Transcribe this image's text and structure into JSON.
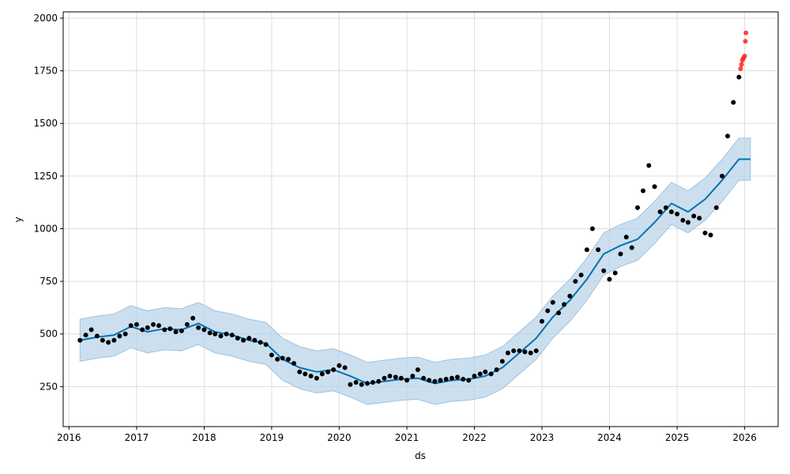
{
  "chart_data": {
    "type": "line",
    "title": "",
    "xlabel": "ds",
    "ylabel": "y",
    "x_ticks": [
      "2016",
      "2017",
      "2018",
      "2019",
      "2020",
      "2021",
      "2022",
      "2023",
      "2024",
      "2025",
      "2026"
    ],
    "y_ticks": [
      250,
      500,
      750,
      1000,
      1250,
      1500,
      1750,
      2000
    ],
    "xlim": [
      "2015-12-01",
      "2026-07-01"
    ],
    "ylim": [
      60,
      2030
    ],
    "grid": true,
    "colors": {
      "forecast": "#0072B2",
      "interval": "#b7d2e8",
      "observed": "#000000",
      "recent": "#ff2020"
    },
    "series": [
      {
        "name": "",
        "role": "observed",
        "points": [
          [
            "2016-03-01",
            470
          ],
          [
            "2016-04-01",
            495
          ],
          [
            "2016-05-01",
            520
          ],
          [
            "2016-06-01",
            490
          ],
          [
            "2016-07-01",
            470
          ],
          [
            "2016-08-01",
            460
          ],
          [
            "2016-09-01",
            470
          ],
          [
            "2016-10-01",
            490
          ],
          [
            "2016-11-01",
            500
          ],
          [
            "2016-12-01",
            540
          ],
          [
            "2017-01-01",
            545
          ],
          [
            "2017-02-01",
            520
          ],
          [
            "2017-03-01",
            530
          ],
          [
            "2017-04-01",
            545
          ],
          [
            "2017-05-01",
            540
          ],
          [
            "2017-06-01",
            520
          ],
          [
            "2017-07-01",
            525
          ],
          [
            "2017-08-01",
            510
          ],
          [
            "2017-09-01",
            515
          ],
          [
            "2017-10-01",
            545
          ],
          [
            "2017-11-01",
            575
          ],
          [
            "2017-12-01",
            530
          ],
          [
            "2018-01-01",
            520
          ],
          [
            "2018-02-01",
            505
          ],
          [
            "2018-03-01",
            500
          ],
          [
            "2018-04-01",
            490
          ],
          [
            "2018-05-01",
            500
          ],
          [
            "2018-06-01",
            495
          ],
          [
            "2018-07-01",
            480
          ],
          [
            "2018-08-01",
            470
          ],
          [
            "2018-09-01",
            480
          ],
          [
            "2018-10-01",
            470
          ],
          [
            "2018-11-01",
            460
          ],
          [
            "2018-12-01",
            450
          ],
          [
            "2019-01-01",
            400
          ],
          [
            "2019-02-01",
            380
          ],
          [
            "2019-03-01",
            385
          ],
          [
            "2019-04-01",
            380
          ],
          [
            "2019-05-01",
            360
          ],
          [
            "2019-06-01",
            320
          ],
          [
            "2019-07-01",
            310
          ],
          [
            "2019-08-01",
            300
          ],
          [
            "2019-09-01",
            290
          ],
          [
            "2019-10-01",
            310
          ],
          [
            "2019-11-01",
            320
          ],
          [
            "2019-12-01",
            330
          ],
          [
            "2020-01-01",
            350
          ],
          [
            "2020-02-01",
            340
          ],
          [
            "2020-03-01",
            260
          ],
          [
            "2020-04-01",
            270
          ],
          [
            "2020-05-01",
            260
          ],
          [
            "2020-06-01",
            265
          ],
          [
            "2020-07-01",
            270
          ],
          [
            "2020-08-01",
            275
          ],
          [
            "2020-09-01",
            290
          ],
          [
            "2020-10-01",
            300
          ],
          [
            "2020-11-01",
            295
          ],
          [
            "2020-12-01",
            290
          ],
          [
            "2021-01-01",
            280
          ],
          [
            "2021-02-01",
            300
          ],
          [
            "2021-03-01",
            330
          ],
          [
            "2021-04-01",
            290
          ],
          [
            "2021-05-01",
            280
          ],
          [
            "2021-06-01",
            275
          ],
          [
            "2021-07-01",
            280
          ],
          [
            "2021-08-01",
            285
          ],
          [
            "2021-09-01",
            290
          ],
          [
            "2021-10-01",
            295
          ],
          [
            "2021-11-01",
            285
          ],
          [
            "2021-12-01",
            280
          ],
          [
            "2022-01-01",
            300
          ],
          [
            "2022-02-01",
            310
          ],
          [
            "2022-03-01",
            320
          ],
          [
            "2022-04-01",
            310
          ],
          [
            "2022-05-01",
            330
          ],
          [
            "2022-06-01",
            370
          ],
          [
            "2022-07-01",
            410
          ],
          [
            "2022-08-01",
            420
          ],
          [
            "2022-09-01",
            420
          ],
          [
            "2022-10-01",
            415
          ],
          [
            "2022-11-01",
            410
          ],
          [
            "2022-12-01",
            420
          ],
          [
            "2023-01-01",
            560
          ],
          [
            "2023-02-01",
            610
          ],
          [
            "2023-03-01",
            650
          ],
          [
            "2023-04-01",
            600
          ],
          [
            "2023-05-01",
            640
          ],
          [
            "2023-06-01",
            680
          ],
          [
            "2023-07-01",
            750
          ],
          [
            "2023-08-01",
            780
          ],
          [
            "2023-09-01",
            900
          ],
          [
            "2023-10-01",
            1000
          ],
          [
            "2023-11-01",
            900
          ],
          [
            "2023-12-01",
            800
          ],
          [
            "2024-01-01",
            760
          ],
          [
            "2024-02-01",
            790
          ],
          [
            "2024-03-01",
            880
          ],
          [
            "2024-04-01",
            960
          ],
          [
            "2024-05-01",
            910
          ],
          [
            "2024-06-01",
            1100
          ],
          [
            "2024-07-01",
            1180
          ],
          [
            "2024-08-01",
            1300
          ],
          [
            "2024-09-01",
            1200
          ],
          [
            "2024-10-01",
            1080
          ],
          [
            "2024-11-01",
            1100
          ],
          [
            "2024-12-01",
            1080
          ],
          [
            "2025-01-01",
            1070
          ],
          [
            "2025-02-01",
            1040
          ],
          [
            "2025-03-01",
            1030
          ],
          [
            "2025-04-01",
            1060
          ],
          [
            "2025-05-01",
            1050
          ],
          [
            "2025-06-01",
            980
          ],
          [
            "2025-07-01",
            970
          ],
          [
            "2025-08-01",
            1100
          ],
          [
            "2025-09-01",
            1250
          ],
          [
            "2025-10-01",
            1440
          ],
          [
            "2025-11-01",
            1600
          ],
          [
            "2025-12-01",
            1720
          ]
        ]
      },
      {
        "name": "",
        "role": "recent",
        "points": [
          [
            "2025-12-10",
            1760
          ],
          [
            "2025-12-15",
            1780
          ],
          [
            "2025-12-20",
            1800
          ],
          [
            "2025-12-25",
            1810
          ],
          [
            "2026-01-01",
            1820
          ],
          [
            "2026-01-05",
            1890
          ],
          [
            "2026-01-08",
            1930
          ]
        ]
      },
      {
        "name": "",
        "role": "forecast",
        "points": [
          [
            "2016-03-01",
            470
          ],
          [
            "2016-06-01",
            485
          ],
          [
            "2016-09-01",
            495
          ],
          [
            "2016-12-01",
            535
          ],
          [
            "2017-03-01",
            510
          ],
          [
            "2017-06-01",
            525
          ],
          [
            "2017-09-01",
            520
          ],
          [
            "2017-12-01",
            550
          ],
          [
            "2018-03-01",
            510
          ],
          [
            "2018-06-01",
            495
          ],
          [
            "2018-09-01",
            470
          ],
          [
            "2018-12-01",
            455
          ],
          [
            "2019-03-01",
            380
          ],
          [
            "2019-06-01",
            340
          ],
          [
            "2019-09-01",
            320
          ],
          [
            "2019-12-01",
            330
          ],
          [
            "2020-03-01",
            300
          ],
          [
            "2020-06-01",
            265
          ],
          [
            "2020-09-01",
            275
          ],
          [
            "2020-12-01",
            285
          ],
          [
            "2021-03-01",
            290
          ],
          [
            "2021-06-01",
            265
          ],
          [
            "2021-09-01",
            280
          ],
          [
            "2021-12-01",
            285
          ],
          [
            "2022-03-01",
            300
          ],
          [
            "2022-06-01",
            340
          ],
          [
            "2022-09-01",
            410
          ],
          [
            "2022-12-01",
            480
          ],
          [
            "2023-03-01",
            580
          ],
          [
            "2023-06-01",
            660
          ],
          [
            "2023-09-01",
            760
          ],
          [
            "2023-12-01",
            880
          ],
          [
            "2024-03-01",
            920
          ],
          [
            "2024-06-01",
            950
          ],
          [
            "2024-09-01",
            1030
          ],
          [
            "2024-12-01",
            1120
          ],
          [
            "2025-03-01",
            1080
          ],
          [
            "2025-06-01",
            1140
          ],
          [
            "2025-09-01",
            1230
          ],
          [
            "2025-12-01",
            1330
          ],
          [
            "2026-02-01",
            1330
          ]
        ]
      }
    ],
    "interval_halfwidth": 100
  }
}
